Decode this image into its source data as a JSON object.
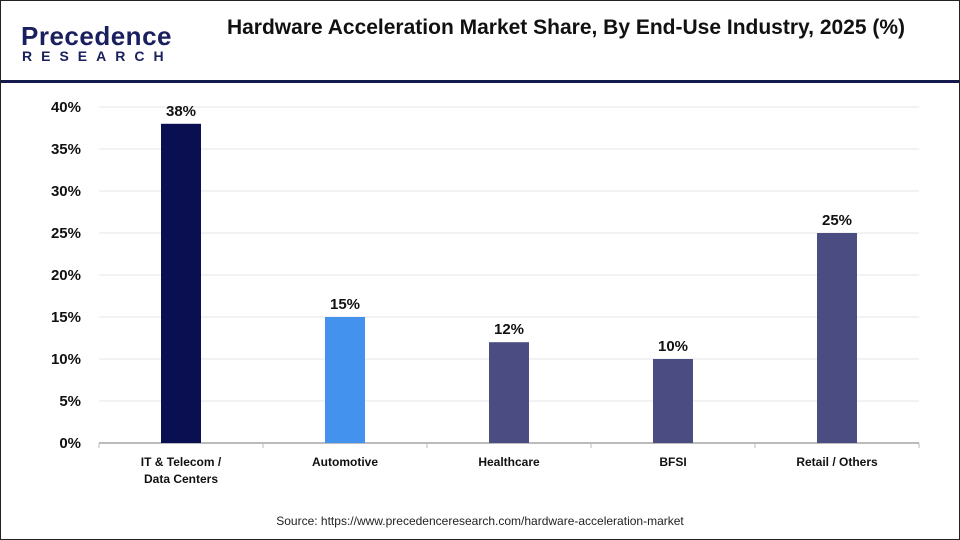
{
  "logo": {
    "line1": "Precedence",
    "line2": "RESEARCH"
  },
  "source": "Source: https://www.precedenceresearch.com/hardware-acceleration-market",
  "chart_data": {
    "type": "bar",
    "title": "Hardware Acceleration Market Share, By End-Use Industry, 2025 (%)",
    "categories": [
      [
        "IT & Telecom /",
        "Data Centers"
      ],
      [
        "Automotive"
      ],
      [
        "Healthcare"
      ],
      [
        "BFSI"
      ],
      [
        "Retail / Others"
      ]
    ],
    "values": [
      38,
      15,
      12,
      10,
      25
    ],
    "data_labels": [
      "38%",
      "15%",
      "12%",
      "10%",
      "25%"
    ],
    "colors": [
      "#0a0f52",
      "#4393ee",
      "#4a4c82",
      "#4a4c82",
      "#4a4c82"
    ],
    "ylim": [
      0,
      40
    ],
    "yticks": [
      "0%",
      "5%",
      "10%",
      "15%",
      "20%",
      "25%",
      "30%",
      "35%",
      "40%"
    ],
    "grid": true,
    "xlabel": "",
    "ylabel": ""
  }
}
